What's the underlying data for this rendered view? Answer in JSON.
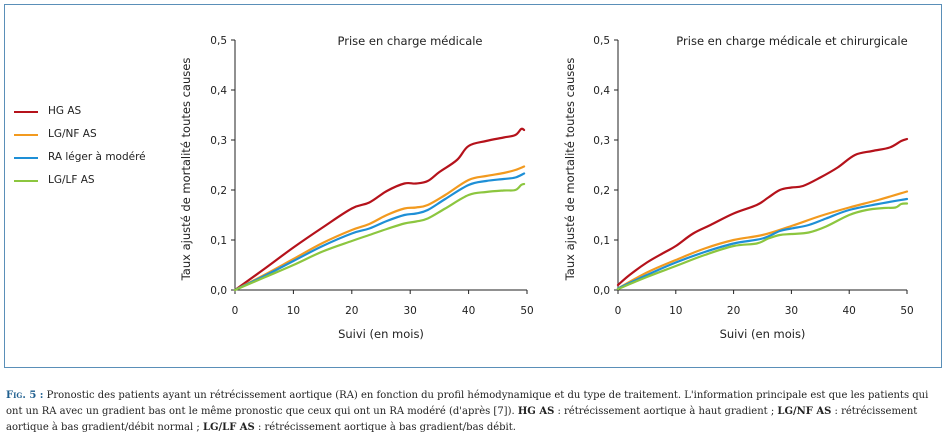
{
  "legend": {
    "items": [
      {
        "label": "HG AS",
        "color": "#b5121b"
      },
      {
        "label": "LG/NF AS",
        "color": "#f29a1f"
      },
      {
        "label": "RA léger à modéré",
        "color": "#1e8fd6"
      },
      {
        "label": "LG/LF AS",
        "color": "#8cc63f"
      }
    ]
  },
  "caption": {
    "fig_label": "Fig. 5 :",
    "part1": " Pronostic des patients ayant un rétrécissement aortique (RA) en fonction du profil hémodynamique et du type de traitement. L'information principale est que les patients qui ont un RA avec un gradient bas ont le même pronostic que ceux qui ont un RA modéré (d'après [7]). ",
    "hg_abbr": "HG AS",
    "hg_def": " : rétrécissement aortique à haut gradient ; ",
    "lgnf_abbr": "LG/NF AS",
    "lgnf_def": " : rétrécissement aortique à bas gradient/débit normal ; ",
    "lglf_abbr": "LG/LF AS",
    "lglf_def": " : rétrécissement aortique à bas gradient/bas débit."
  },
  "chart_data": [
    {
      "type": "line",
      "title": "Prise en charge médicale",
      "xlabel": "Suivi (en mois)",
      "ylabel": "Taux ajusté de mortalité toutes causes",
      "xlim": [
        0,
        50
      ],
      "ylim": [
        0,
        0.5
      ],
      "xticks": [
        0,
        10,
        20,
        30,
        40,
        50
      ],
      "yticks": [
        0.0,
        0.1,
        0.2,
        0.3,
        0.4,
        0.5
      ],
      "yticklabels": [
        "0,0",
        "0,1",
        "0,2",
        "0,3",
        "0,4",
        "0,5"
      ],
      "grid": false,
      "series": [
        {
          "name": "HG AS",
          "color": "#b5121b",
          "x": [
            0,
            5,
            10,
            15,
            20,
            23,
            26,
            29,
            31,
            33,
            35,
            38,
            40,
            43,
            46,
            48,
            49,
            49.5
          ],
          "y": [
            0,
            0.042,
            0.085,
            0.125,
            0.163,
            0.175,
            0.198,
            0.213,
            0.213,
            0.218,
            0.236,
            0.26,
            0.288,
            0.298,
            0.305,
            0.31,
            0.322,
            0.32
          ]
        },
        {
          "name": "LG/NF AS",
          "color": "#f29a1f",
          "x": [
            0,
            5,
            10,
            15,
            20,
            23,
            26,
            29,
            31,
            33,
            36,
            40,
            43,
            46,
            48,
            49.5
          ],
          "y": [
            0,
            0.03,
            0.062,
            0.094,
            0.12,
            0.132,
            0.15,
            0.163,
            0.165,
            0.17,
            0.19,
            0.22,
            0.228,
            0.234,
            0.24,
            0.247
          ]
        },
        {
          "name": "RA léger à modéré",
          "color": "#1e8fd6",
          "x": [
            0,
            5,
            10,
            15,
            20,
            23,
            26,
            29,
            31,
            33,
            36,
            40,
            43,
            46,
            48,
            49.5
          ],
          "y": [
            0,
            0.028,
            0.058,
            0.088,
            0.113,
            0.123,
            0.138,
            0.15,
            0.153,
            0.16,
            0.182,
            0.21,
            0.218,
            0.222,
            0.225,
            0.233
          ]
        },
        {
          "name": "LG/LF AS",
          "color": "#8cc63f",
          "x": [
            0,
            5,
            10,
            15,
            20,
            23,
            26,
            29,
            31,
            33,
            36,
            40,
            43,
            46,
            48,
            49,
            49.5
          ],
          "y": [
            0,
            0.025,
            0.05,
            0.077,
            0.098,
            0.11,
            0.122,
            0.133,
            0.137,
            0.143,
            0.163,
            0.19,
            0.196,
            0.199,
            0.2,
            0.21,
            0.212
          ]
        }
      ]
    },
    {
      "type": "line",
      "title": "Prise en charge médicale et chirurgicale",
      "xlabel": "Suivi (en mois)",
      "ylabel": "Taux ajusté de mortalité toutes causes",
      "xlim": [
        0,
        50
      ],
      "ylim": [
        0,
        0.5
      ],
      "xticks": [
        0,
        10,
        20,
        30,
        40,
        50
      ],
      "yticks": [
        0.0,
        0.1,
        0.2,
        0.3,
        0.4,
        0.5
      ],
      "yticklabels": [
        "0,0",
        "0,1",
        "0,2",
        "0,3",
        "0,4",
        "0,5"
      ],
      "grid": false,
      "series": [
        {
          "name": "HG AS",
          "color": "#b5121b",
          "x": [
            0,
            2,
            5,
            8,
            10,
            13,
            16,
            20,
            24,
            26,
            28,
            30,
            32,
            35,
            38,
            41,
            44,
            47,
            49,
            50
          ],
          "y": [
            0.01,
            0.03,
            0.055,
            0.075,
            0.088,
            0.113,
            0.13,
            0.153,
            0.17,
            0.185,
            0.2,
            0.205,
            0.208,
            0.225,
            0.245,
            0.27,
            0.278,
            0.285,
            0.298,
            0.302
          ]
        },
        {
          "name": "LG/NF AS",
          "color": "#f29a1f",
          "x": [
            0,
            5,
            10,
            15,
            20,
            25,
            30,
            35,
            40,
            45,
            50
          ],
          "y": [
            0.003,
            0.035,
            0.06,
            0.083,
            0.1,
            0.11,
            0.128,
            0.148,
            0.165,
            0.18,
            0.197
          ]
        },
        {
          "name": "RA léger à modéré",
          "color": "#1e8fd6",
          "x": [
            0,
            5,
            10,
            15,
            20,
            25,
            28,
            30,
            33,
            36,
            40,
            45,
            50
          ],
          "y": [
            0.003,
            0.03,
            0.055,
            0.076,
            0.093,
            0.103,
            0.118,
            0.123,
            0.13,
            0.143,
            0.16,
            0.172,
            0.182
          ]
        },
        {
          "name": "LG/LF AS",
          "color": "#8cc63f",
          "x": [
            0,
            5,
            10,
            15,
            20,
            24,
            26,
            28,
            30,
            33,
            36,
            40,
            43,
            46,
            48,
            49,
            50
          ],
          "y": [
            0.002,
            0.026,
            0.048,
            0.07,
            0.088,
            0.093,
            0.103,
            0.11,
            0.112,
            0.115,
            0.127,
            0.15,
            0.16,
            0.164,
            0.165,
            0.172,
            0.173
          ]
        }
      ]
    }
  ]
}
